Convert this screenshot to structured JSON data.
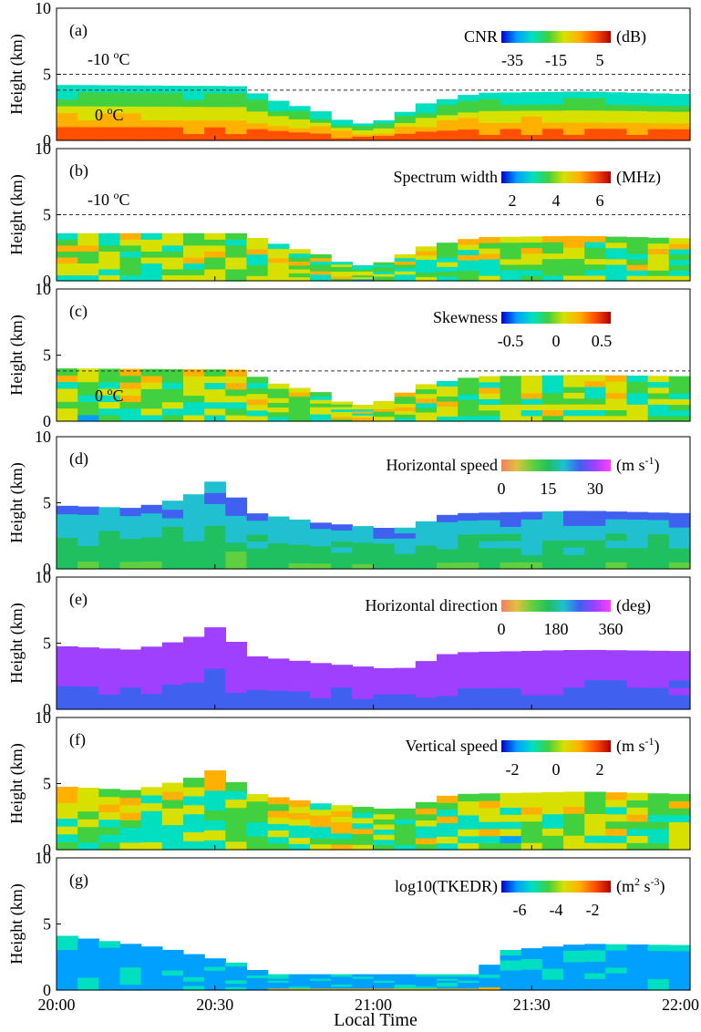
{
  "figure": {
    "x_label": "Local Time",
    "y_label": "Height (km)",
    "x_ticks": [
      "20:00",
      "20:30",
      "21:00",
      "21:30",
      "22:00"
    ],
    "y_ticks": [
      "0",
      "5",
      "10"
    ]
  },
  "chart_data": [
    {
      "type": "heatmap",
      "panel": "(a)",
      "quantity": "CNR",
      "unit": "(dB)",
      "colorbar_ticks": [
        "-35",
        "-15",
        "5"
      ],
      "clim": [
        -40,
        10
      ],
      "colormap": [
        "#0000c8",
        "#00a0ff",
        "#00e0c0",
        "#40d040",
        "#d8e000",
        "#ffb000",
        "#ff5000",
        "#b00000"
      ],
      "x_range": [
        "20:00",
        "22:00"
      ],
      "ylim": [
        0,
        10
      ],
      "annotations": [
        "-10 oC",
        "0 oC"
      ],
      "reference_lines_km": [
        5.0,
        3.8
      ],
      "echo_top_km": [
        [
          0,
          4.2
        ],
        [
          35,
          4.1
        ],
        [
          40,
          3.2
        ],
        [
          50,
          2.2
        ],
        [
          55,
          1.4
        ],
        [
          60,
          1.2
        ],
        [
          70,
          2.8
        ],
        [
          80,
          3.6
        ],
        [
          100,
          3.7
        ],
        [
          120,
          3.5
        ]
      ]
    },
    {
      "type": "heatmap",
      "panel": "(b)",
      "quantity": "Spectrum width",
      "unit": "(MHz)",
      "colorbar_ticks": [
        "2",
        "4",
        "6"
      ],
      "clim": [
        1.5,
        6.5
      ],
      "colormap": [
        "#0000c8",
        "#00a0ff",
        "#00e0c0",
        "#40d040",
        "#d8e000",
        "#ffb000",
        "#ff5000",
        "#b00000"
      ],
      "x_range": [
        "20:00",
        "22:00"
      ],
      "ylim": [
        0,
        10
      ],
      "annotations": [
        "-10 oC"
      ],
      "reference_lines_km": [
        5.0
      ],
      "echo_top_km": [
        [
          0,
          3.6
        ],
        [
          35,
          3.6
        ],
        [
          40,
          3.0
        ],
        [
          50,
          2.0
        ],
        [
          55,
          1.3
        ],
        [
          60,
          1.1
        ],
        [
          70,
          2.6
        ],
        [
          80,
          3.3
        ],
        [
          100,
          3.4
        ],
        [
          120,
          3.2
        ]
      ]
    },
    {
      "type": "heatmap",
      "panel": "(c)",
      "quantity": "Skewness",
      "unit": "",
      "colorbar_ticks": [
        "-0.5",
        "0",
        "0.5"
      ],
      "clim": [
        -0.6,
        0.6
      ],
      "colormap": [
        "#0000c8",
        "#00a0ff",
        "#00e0c0",
        "#40d040",
        "#d8e000",
        "#ffb000",
        "#ff5000",
        "#b00000"
      ],
      "x_range": [
        "20:00",
        "22:00"
      ],
      "ylim": [
        0,
        10
      ],
      "annotations": [
        "0 oC"
      ],
      "reference_lines_km": [
        3.8
      ],
      "echo_top_km": [
        [
          0,
          4.0
        ],
        [
          35,
          3.9
        ],
        [
          40,
          3.0
        ],
        [
          50,
          2.2
        ],
        [
          55,
          1.3
        ],
        [
          60,
          1.2
        ],
        [
          70,
          2.8
        ],
        [
          80,
          3.4
        ],
        [
          100,
          3.5
        ],
        [
          120,
          3.4
        ]
      ]
    },
    {
      "type": "heatmap",
      "panel": "(d)",
      "quantity": "Horizontal speed",
      "unit": "(m s-1)",
      "colorbar_ticks": [
        "0",
        "15",
        "30"
      ],
      "clim": [
        0,
        35
      ],
      "colormap": [
        "#f08060",
        "#e0c040",
        "#60d040",
        "#20c060",
        "#20c0d0",
        "#4060f0",
        "#a040ff",
        "#ff40ff"
      ],
      "x_range": [
        "20:00",
        "22:00"
      ],
      "ylim": [
        0,
        10
      ],
      "echo_top_km": [
        [
          0,
          4.8
        ],
        [
          15,
          4.6
        ],
        [
          25,
          5.4
        ],
        [
          30,
          6.6
        ],
        [
          38,
          4.2
        ],
        [
          50,
          3.5
        ],
        [
          65,
          3.0
        ],
        [
          75,
          4.2
        ],
        [
          100,
          4.4
        ],
        [
          120,
          4.2
        ]
      ]
    },
    {
      "type": "heatmap",
      "panel": "(e)",
      "quantity": "Horizontal direction",
      "unit": "(deg)",
      "colorbar_ticks": [
        "0",
        "180",
        "360"
      ],
      "clim": [
        0,
        360
      ],
      "colormap": [
        "#f08060",
        "#e0c040",
        "#60d040",
        "#20c060",
        "#20c0d0",
        "#4060f0",
        "#a040ff",
        "#ff40ff"
      ],
      "x_range": [
        "20:00",
        "22:00"
      ],
      "ylim": [
        0,
        10
      ],
      "echo_top_km": [
        [
          0,
          4.8
        ],
        [
          15,
          4.5
        ],
        [
          25,
          5.3
        ],
        [
          30,
          6.2
        ],
        [
          38,
          4.0
        ],
        [
          50,
          3.5
        ],
        [
          65,
          3.0
        ],
        [
          75,
          4.3
        ],
        [
          100,
          4.5
        ],
        [
          120,
          4.4
        ]
      ]
    },
    {
      "type": "heatmap",
      "panel": "(f)",
      "quantity": "Vertical speed",
      "unit": "(m s-1)",
      "colorbar_ticks": [
        "-2",
        "0",
        "2"
      ],
      "clim": [
        -2.5,
        2.5
      ],
      "colormap": [
        "#0000c8",
        "#00a0ff",
        "#00e0c0",
        "#40d040",
        "#d8e000",
        "#ffb000",
        "#ff5000",
        "#b00000"
      ],
      "x_range": [
        "20:00",
        "22:00"
      ],
      "ylim": [
        0,
        10
      ],
      "echo_top_km": [
        [
          0,
          4.8
        ],
        [
          15,
          4.5
        ],
        [
          25,
          5.3
        ],
        [
          30,
          6.0
        ],
        [
          38,
          4.2
        ],
        [
          50,
          3.5
        ],
        [
          65,
          3.0
        ],
        [
          75,
          4.2
        ],
        [
          100,
          4.4
        ],
        [
          120,
          4.2
        ]
      ]
    },
    {
      "type": "heatmap",
      "panel": "(g)",
      "quantity": "log10(TKEDR)",
      "unit": "(m2 s-3)",
      "colorbar_ticks": [
        "-6",
        "-4",
        "-2"
      ],
      "clim": [
        -7,
        -1
      ],
      "colormap": [
        "#0000c8",
        "#00a0ff",
        "#00e0c0",
        "#40d040",
        "#d8e000",
        "#ffb000",
        "#ff5000",
        "#b00000"
      ],
      "x_range": [
        "20:00",
        "22:00"
      ],
      "ylim": [
        0,
        10
      ],
      "echo_top_km": [
        [
          0,
          4.2
        ],
        [
          20,
          3.2
        ],
        [
          35,
          2.0
        ],
        [
          40,
          1.2
        ],
        [
          80,
          1.2
        ],
        [
          85,
          3.0
        ],
        [
          100,
          3.5
        ],
        [
          120,
          3.4
        ]
      ]
    }
  ]
}
